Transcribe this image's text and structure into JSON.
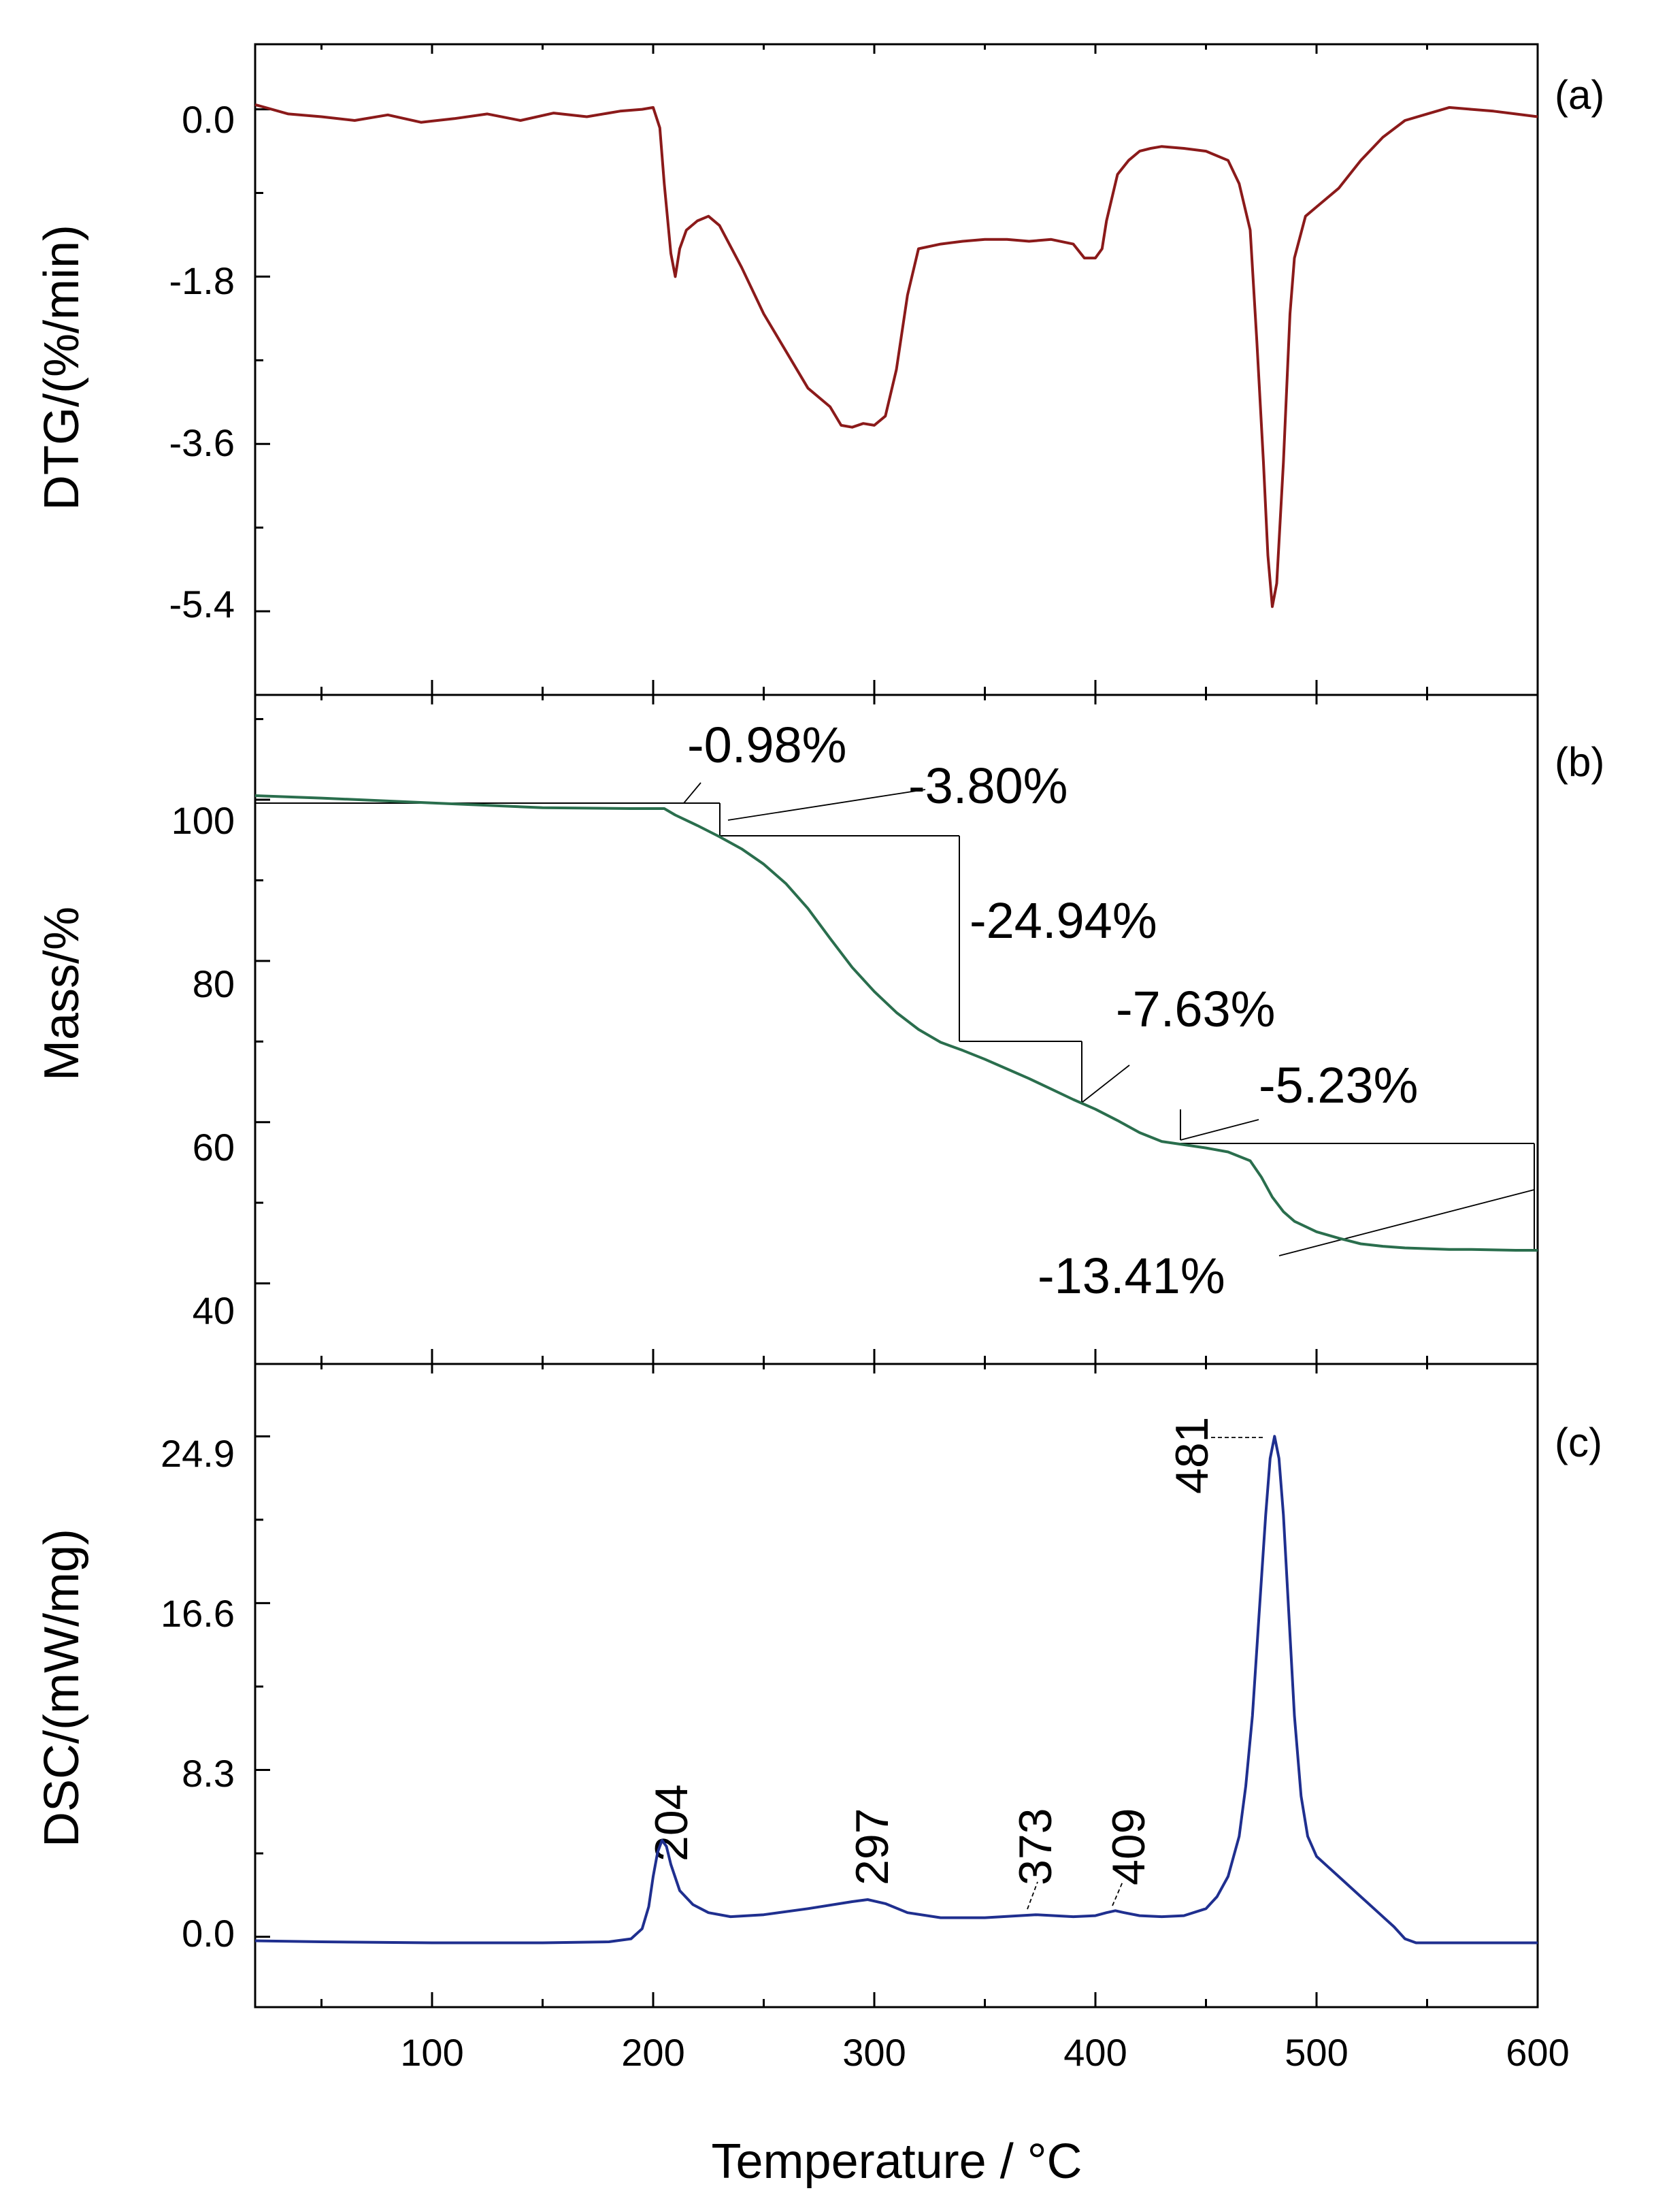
{
  "chart_data": [
    {
      "panel_label": "(a)",
      "type": "line",
      "ylabel": "DTG/(%/min)",
      "xlim": [
        20,
        600
      ],
      "ylim": [
        -6.3,
        0.7
      ],
      "yticks": [
        0.0,
        -1.8,
        -3.6,
        -5.4
      ],
      "ytick_labels": [
        "0.0",
        "-1.8",
        "-3.6",
        "-5.4"
      ],
      "series": [
        {
          "name": "DTG",
          "color": "#8b1a1a",
          "x": [
            20,
            35,
            50,
            65,
            80,
            95,
            110,
            125,
            140,
            155,
            170,
            185,
            195,
            200,
            203,
            205,
            208,
            210,
            212,
            215,
            220,
            225,
            230,
            240,
            250,
            260,
            270,
            280,
            285,
            290,
            295,
            300,
            305,
            310,
            315,
            320,
            330,
            340,
            350,
            360,
            370,
            380,
            390,
            395,
            400,
            403,
            405,
            410,
            415,
            420,
            425,
            430,
            440,
            450,
            460,
            465,
            470,
            473,
            476,
            478,
            480,
            482,
            485,
            488,
            490,
            495,
            500,
            510,
            520,
            530,
            540,
            550,
            560,
            570,
            580,
            590,
            600
          ],
          "y": [
            0.05,
            -0.05,
            -0.08,
            -0.12,
            -0.06,
            -0.14,
            -0.1,
            -0.05,
            -0.12,
            -0.04,
            -0.08,
            -0.02,
            0.0,
            0.02,
            -0.2,
            -0.8,
            -1.55,
            -1.8,
            -1.5,
            -1.3,
            -1.2,
            -1.15,
            -1.25,
            -1.7,
            -2.2,
            -2.6,
            -3.0,
            -3.2,
            -3.4,
            -3.42,
            -3.38,
            -3.4,
            -3.3,
            -2.8,
            -2.0,
            -1.5,
            -1.45,
            -1.42,
            -1.4,
            -1.4,
            -1.42,
            -1.4,
            -1.45,
            -1.6,
            -1.6,
            -1.5,
            -1.2,
            -0.7,
            -0.55,
            -0.45,
            -0.42,
            -0.4,
            -0.42,
            -0.45,
            -0.55,
            -0.8,
            -1.3,
            -2.5,
            -3.8,
            -4.8,
            -5.35,
            -5.1,
            -3.8,
            -2.2,
            -1.6,
            -1.15,
            -1.05,
            -0.85,
            -0.55,
            -0.3,
            -0.12,
            -0.05,
            0.02,
            0.0,
            -0.02,
            -0.05,
            -0.08
          ]
        }
      ]
    },
    {
      "panel_label": "(b)",
      "type": "line",
      "ylabel": "Mass/%",
      "xlim": [
        20,
        600
      ],
      "ylim": [
        30,
        113
      ],
      "yticks": [
        100,
        80,
        60,
        40
      ],
      "ytick_labels": [
        "100",
        "80",
        "60",
        "40"
      ],
      "series": [
        {
          "name": "Mass",
          "color": "#2a6e4d",
          "x": [
            20,
            50,
            100,
            150,
            190,
            205,
            210,
            220,
            230,
            240,
            250,
            260,
            270,
            280,
            290,
            300,
            310,
            320,
            330,
            340,
            350,
            360,
            370,
            380,
            390,
            400,
            410,
            420,
            430,
            440,
            450,
            460,
            470,
            475,
            480,
            485,
            490,
            500,
            510,
            520,
            530,
            540,
            550,
            560,
            570,
            580,
            590,
            600
          ],
          "y": [
            100.5,
            100.2,
            99.6,
            99.0,
            98.9,
            98.9,
            98.1,
            96.8,
            95.4,
            93.9,
            92.0,
            89.6,
            86.5,
            82.8,
            79.2,
            76.2,
            73.6,
            71.5,
            69.9,
            68.9,
            67.8,
            66.6,
            65.4,
            64.1,
            62.8,
            61.6,
            60.2,
            58.7,
            57.6,
            57.2,
            56.8,
            56.3,
            55.2,
            53.2,
            50.7,
            48.9,
            47.7,
            46.4,
            45.6,
            44.9,
            44.6,
            44.4,
            44.3,
            44.2,
            44.2,
            44.15,
            44.1,
            44.1
          ]
        }
      ],
      "annotations": [
        "-0.98%",
        "-3.80%",
        "-24.94%",
        "-7.63%",
        "-5.23%",
        "-13.41%"
      ]
    },
    {
      "panel_label": "(c)",
      "type": "line",
      "ylabel": "DSC/(mW/mg)",
      "xlabel": "Temperature / °C",
      "xlim": [
        20,
        600
      ],
      "ylim": [
        -3.5,
        28.5
      ],
      "yticks": [
        24.9,
        16.6,
        8.3,
        0.0
      ],
      "ytick_labels": [
        "24.9",
        "16.6",
        "8.3",
        "0.0"
      ],
      "xticks": [
        100,
        200,
        300,
        400,
        500,
        600
      ],
      "xtick_labels": [
        "100",
        "200",
        "300",
        "400",
        "500",
        "600"
      ],
      "series": [
        {
          "name": "DSC",
          "color": "#1f2f8f",
          "x": [
            20,
            50,
            100,
            150,
            180,
            190,
            195,
            198,
            200,
            202,
            204,
            206,
            208,
            212,
            218,
            225,
            235,
            250,
            270,
            290,
            297,
            305,
            315,
            330,
            350,
            373,
            390,
            400,
            405,
            409,
            413,
            420,
            430,
            440,
            450,
            455,
            460,
            465,
            468,
            471,
            474,
            477,
            479,
            481,
            483,
            485,
            487,
            490,
            493,
            496,
            500,
            505,
            510,
            520,
            528,
            535,
            540,
            545,
            550,
            560,
            580,
            600
          ],
          "y": [
            -0.2,
            -0.25,
            -0.3,
            -0.3,
            -0.25,
            -0.1,
            0.4,
            1.5,
            3.0,
            4.2,
            4.8,
            4.5,
            3.6,
            2.3,
            1.6,
            1.2,
            1.0,
            1.1,
            1.4,
            1.75,
            1.85,
            1.65,
            1.2,
            0.95,
            0.95,
            1.1,
            1.0,
            1.05,
            1.2,
            1.3,
            1.2,
            1.05,
            1.0,
            1.05,
            1.4,
            2.0,
            3.0,
            5.0,
            7.5,
            11.0,
            16.0,
            21.0,
            23.8,
            24.9,
            23.8,
            21.0,
            17.0,
            11.0,
            7.0,
            5.0,
            4.0,
            3.5,
            3.0,
            2.0,
            1.2,
            0.5,
            -0.1,
            -0.3,
            -0.3,
            -0.3,
            -0.3,
            -0.3
          ]
        }
      ],
      "peak_labels": [
        "204",
        "297",
        "373",
        "409",
        "481"
      ]
    }
  ]
}
